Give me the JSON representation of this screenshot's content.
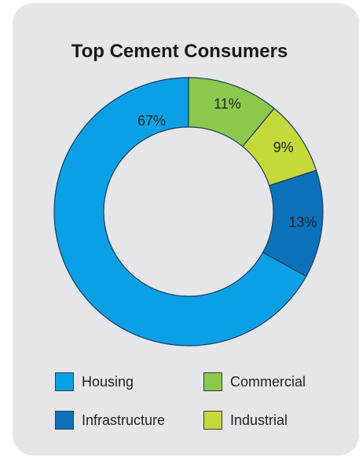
{
  "chart_data": {
    "type": "pie",
    "title": "Top Cement Consumers",
    "categories": [
      "Housing",
      "Infrastructure",
      "Industrial",
      "Commercial"
    ],
    "values": [
      67,
      13,
      9,
      11
    ],
    "labels": [
      "67%",
      "13%",
      "9%",
      "11%"
    ],
    "colors": [
      "#0ba0e6",
      "#0b72b9",
      "#c5d93b",
      "#8cc84b"
    ],
    "legend": [
      {
        "label": "Housing",
        "color": "#0ba0e6"
      },
      {
        "label": "Commercial",
        "color": "#8cc84b"
      },
      {
        "label": "Infrastructure",
        "color": "#0b72b9"
      },
      {
        "label": "Industrial",
        "color": "#c5d93b"
      }
    ],
    "legend_position": "bottom",
    "donut": true
  }
}
